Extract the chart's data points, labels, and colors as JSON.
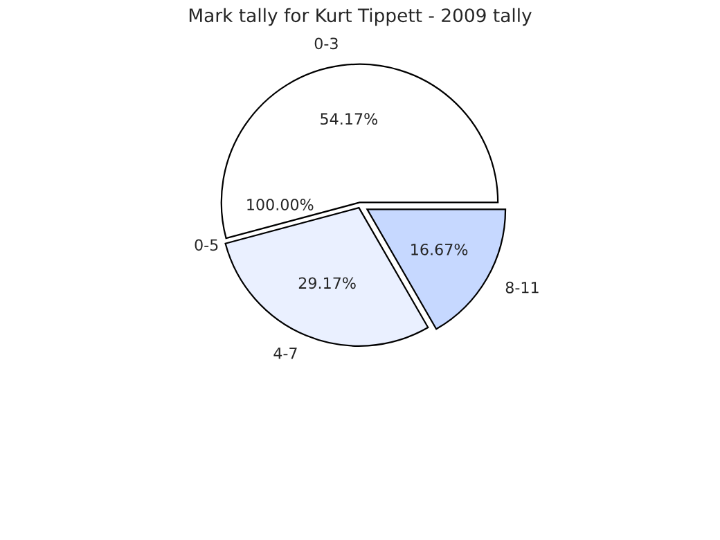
{
  "chart_data": {
    "type": "pie",
    "title": "Mark tally for Kurt Tippett - 2009 tally",
    "categories": [
      "0-3",
      "4-7",
      "8-11"
    ],
    "values": [
      54.17,
      29.17,
      16.67
    ],
    "value_labels": [
      "54.17%",
      "29.17%",
      "16.67%"
    ],
    "colors": [
      "#ffffff",
      "#eaf0ff",
      "#c6d8ff"
    ],
    "annotations": [
      "0-5",
      "100.00%"
    ],
    "legend": false
  }
}
